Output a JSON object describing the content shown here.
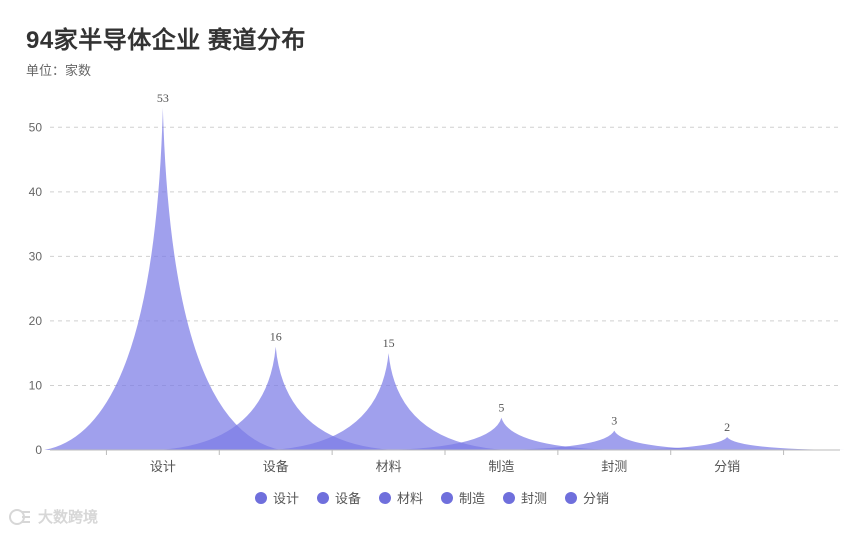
{
  "header": {
    "title": "94家半导体企业 赛道分布",
    "subtitle": "单位：家数"
  },
  "chart_data": {
    "type": "area",
    "title": "94家半导体企业 赛道分布",
    "ylabel": "单位：家数",
    "categories": [
      "设计",
      "设备",
      "材料",
      "制造",
      "封测",
      "分销"
    ],
    "values": [
      53,
      16,
      15,
      5,
      3,
      2
    ],
    "ylim": [
      0,
      55
    ],
    "yticks": [
      0,
      10,
      20,
      30,
      40,
      50
    ],
    "grid": true,
    "legend_position": "bottom",
    "series_color": "#7b7be6"
  },
  "legend": {
    "items": [
      "设计",
      "设备",
      "材料",
      "制造",
      "封测",
      "分销"
    ]
  },
  "watermark": {
    "text": "大数跨境"
  }
}
